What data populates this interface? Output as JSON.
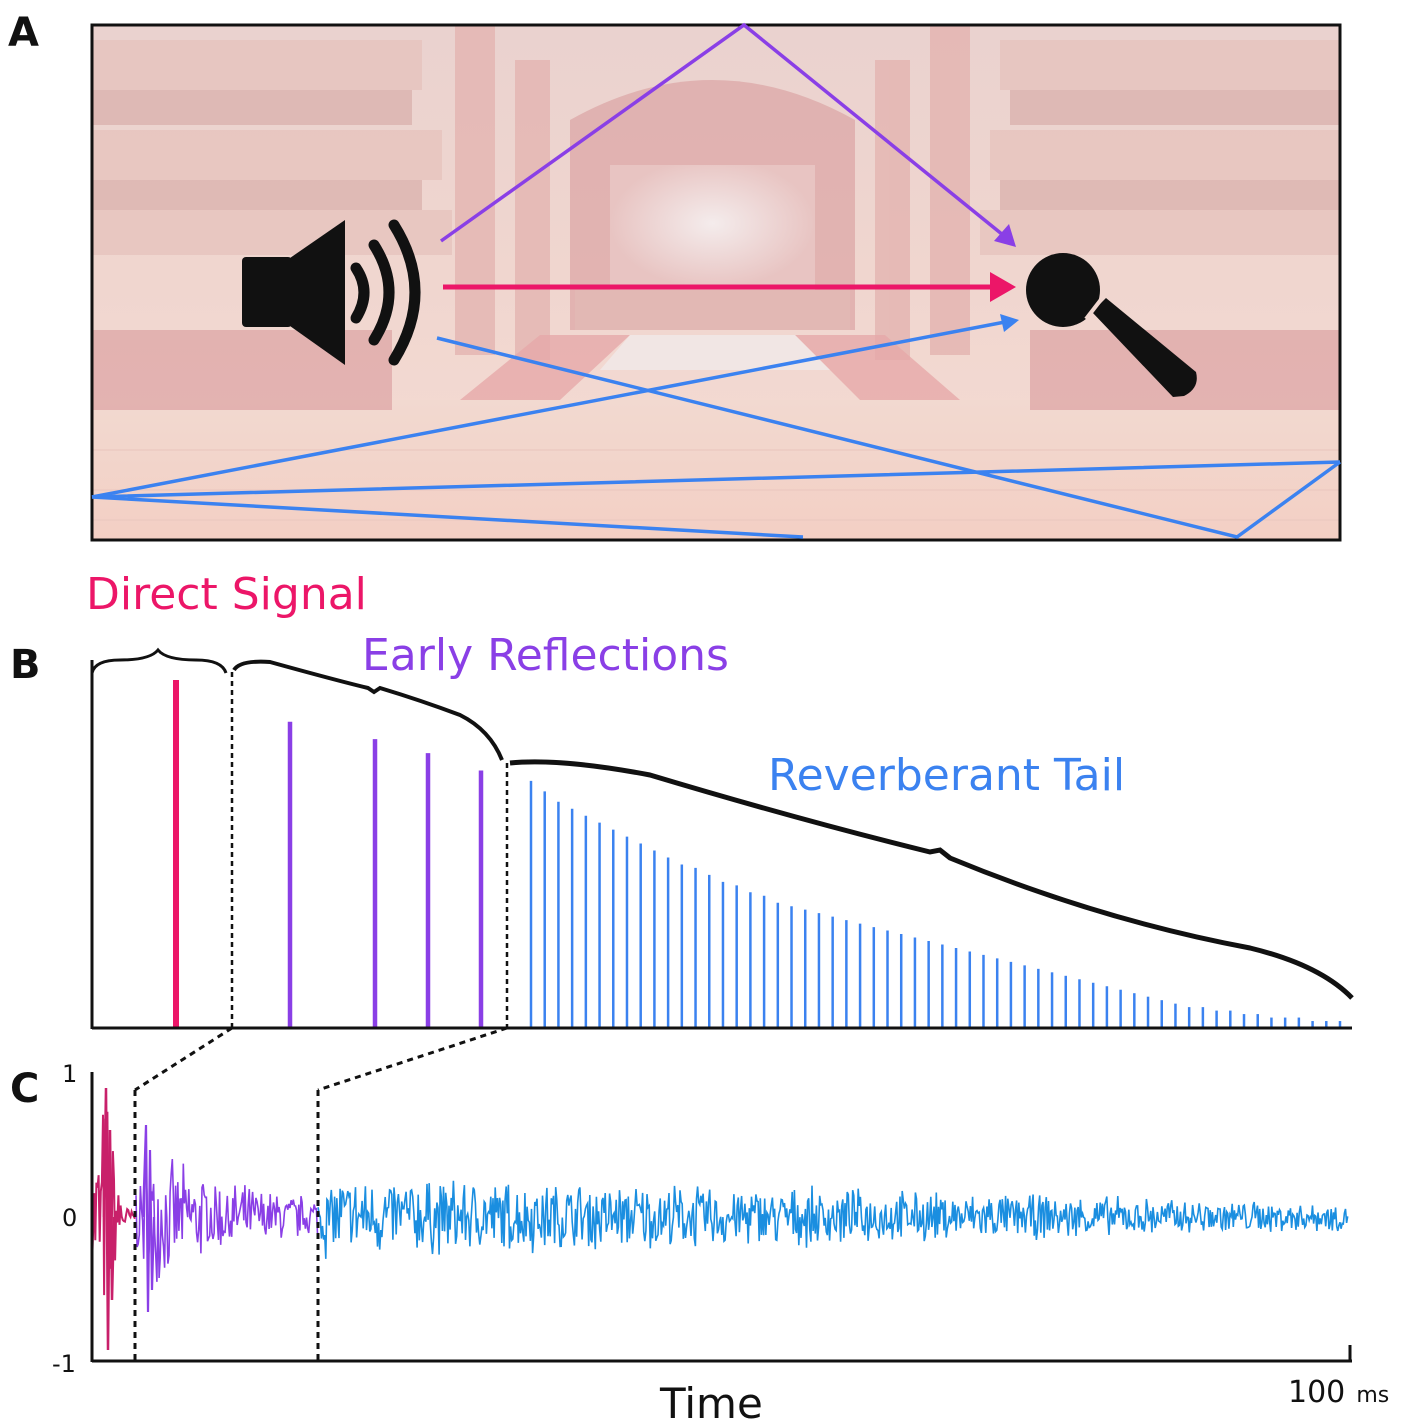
{
  "panels": {
    "a": {
      "letter": "A"
    },
    "b": {
      "letter": "B"
    },
    "c": {
      "letter": "C"
    }
  },
  "labels": {
    "direct": "Direct Signal",
    "early": "Early Reflections",
    "tail": "Reverberant Tail"
  },
  "colors": {
    "direct": "#ec1668",
    "early": "#8a3fe6",
    "tail": "#3b82f0",
    "tail_wave": "#1a8ee0",
    "direct_wave": "#c8206a",
    "ink": "#111111"
  },
  "icons": {
    "source": "speaker-icon",
    "receiver": "microphone-icon",
    "background": "concert-hall-photo"
  },
  "axis": {
    "title": "Time",
    "end_value": "100",
    "end_unit": "ms",
    "y_ticks": [
      "1",
      "0",
      "-1"
    ]
  },
  "chart_data": {
    "type": "bar",
    "title": "",
    "xlabel": "Time",
    "series": [
      {
        "name": "Direct Signal",
        "values": [
          1.0
        ]
      },
      {
        "name": "Early Reflections",
        "values": [
          0.88,
          0.83,
          0.79,
          0.74
        ]
      },
      {
        "name": "Reverberant Tail",
        "values": [
          0.71,
          0.68,
          0.65,
          0.63,
          0.61,
          0.59,
          0.57,
          0.55,
          0.53,
          0.51,
          0.49,
          0.47,
          0.46,
          0.44,
          0.42,
          0.41,
          0.39,
          0.38,
          0.36,
          0.35,
          0.34,
          0.33,
          0.32,
          0.31,
          0.3,
          0.29,
          0.28,
          0.27,
          0.26,
          0.25,
          0.24,
          0.23,
          0.22,
          0.21,
          0.2,
          0.19,
          0.18,
          0.17,
          0.16,
          0.15,
          0.14,
          0.13,
          0.12,
          0.11,
          0.1,
          0.09,
          0.08,
          0.07,
          0.06,
          0.06,
          0.05,
          0.05,
          0.04,
          0.04,
          0.03,
          0.03,
          0.03,
          0.02,
          0.02,
          0.02
        ]
      }
    ],
    "waveform": {
      "ylim": [
        -1,
        1
      ],
      "xlim_ms": [
        0,
        100
      ],
      "segments": [
        {
          "name": "Direct Signal",
          "end_ms": 3.5,
          "peak": 0.9
        },
        {
          "name": "Early Reflections",
          "end_ms": 18,
          "peak": 0.6
        },
        {
          "name": "Reverberant Tail",
          "end_ms": 100,
          "peak": 0.35
        }
      ]
    }
  }
}
